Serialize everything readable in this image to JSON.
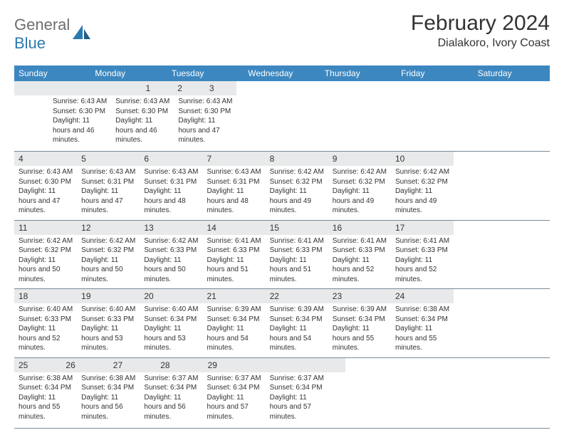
{
  "brand": {
    "part1": "General",
    "part2": "Blue"
  },
  "title": "February 2024",
  "location": "Dialakoro, Ivory Coast",
  "colors": {
    "header_bg": "#3c87c0",
    "header_text": "#ffffff",
    "num_bg": "#e8e9ea",
    "text": "#333333",
    "logo_gray": "#6e6e6e",
    "logo_blue": "#2a7ab0",
    "rule": "#7a8a99"
  },
  "dayNames": [
    "Sunday",
    "Monday",
    "Tuesday",
    "Wednesday",
    "Thursday",
    "Friday",
    "Saturday"
  ],
  "weeks": [
    [
      null,
      null,
      null,
      null,
      {
        "n": "1",
        "sunrise": "6:43 AM",
        "sunset": "6:30 PM",
        "daylight": "11 hours and 46 minutes."
      },
      {
        "n": "2",
        "sunrise": "6:43 AM",
        "sunset": "6:30 PM",
        "daylight": "11 hours and 46 minutes."
      },
      {
        "n": "3",
        "sunrise": "6:43 AM",
        "sunset": "6:30 PM",
        "daylight": "11 hours and 47 minutes."
      }
    ],
    [
      {
        "n": "4",
        "sunrise": "6:43 AM",
        "sunset": "6:30 PM",
        "daylight": "11 hours and 47 minutes."
      },
      {
        "n": "5",
        "sunrise": "6:43 AM",
        "sunset": "6:31 PM",
        "daylight": "11 hours and 47 minutes."
      },
      {
        "n": "6",
        "sunrise": "6:43 AM",
        "sunset": "6:31 PM",
        "daylight": "11 hours and 48 minutes."
      },
      {
        "n": "7",
        "sunrise": "6:43 AM",
        "sunset": "6:31 PM",
        "daylight": "11 hours and 48 minutes."
      },
      {
        "n": "8",
        "sunrise": "6:42 AM",
        "sunset": "6:32 PM",
        "daylight": "11 hours and 49 minutes."
      },
      {
        "n": "9",
        "sunrise": "6:42 AM",
        "sunset": "6:32 PM",
        "daylight": "11 hours and 49 minutes."
      },
      {
        "n": "10",
        "sunrise": "6:42 AM",
        "sunset": "6:32 PM",
        "daylight": "11 hours and 49 minutes."
      }
    ],
    [
      {
        "n": "11",
        "sunrise": "6:42 AM",
        "sunset": "6:32 PM",
        "daylight": "11 hours and 50 minutes."
      },
      {
        "n": "12",
        "sunrise": "6:42 AM",
        "sunset": "6:32 PM",
        "daylight": "11 hours and 50 minutes."
      },
      {
        "n": "13",
        "sunrise": "6:42 AM",
        "sunset": "6:33 PM",
        "daylight": "11 hours and 50 minutes."
      },
      {
        "n": "14",
        "sunrise": "6:41 AM",
        "sunset": "6:33 PM",
        "daylight": "11 hours and 51 minutes."
      },
      {
        "n": "15",
        "sunrise": "6:41 AM",
        "sunset": "6:33 PM",
        "daylight": "11 hours and 51 minutes."
      },
      {
        "n": "16",
        "sunrise": "6:41 AM",
        "sunset": "6:33 PM",
        "daylight": "11 hours and 52 minutes."
      },
      {
        "n": "17",
        "sunrise": "6:41 AM",
        "sunset": "6:33 PM",
        "daylight": "11 hours and 52 minutes."
      }
    ],
    [
      {
        "n": "18",
        "sunrise": "6:40 AM",
        "sunset": "6:33 PM",
        "daylight": "11 hours and 52 minutes."
      },
      {
        "n": "19",
        "sunrise": "6:40 AM",
        "sunset": "6:33 PM",
        "daylight": "11 hours and 53 minutes."
      },
      {
        "n": "20",
        "sunrise": "6:40 AM",
        "sunset": "6:34 PM",
        "daylight": "11 hours and 53 minutes."
      },
      {
        "n": "21",
        "sunrise": "6:39 AM",
        "sunset": "6:34 PM",
        "daylight": "11 hours and 54 minutes."
      },
      {
        "n": "22",
        "sunrise": "6:39 AM",
        "sunset": "6:34 PM",
        "daylight": "11 hours and 54 minutes."
      },
      {
        "n": "23",
        "sunrise": "6:39 AM",
        "sunset": "6:34 PM",
        "daylight": "11 hours and 55 minutes."
      },
      {
        "n": "24",
        "sunrise": "6:38 AM",
        "sunset": "6:34 PM",
        "daylight": "11 hours and 55 minutes."
      }
    ],
    [
      {
        "n": "25",
        "sunrise": "6:38 AM",
        "sunset": "6:34 PM",
        "daylight": "11 hours and 55 minutes."
      },
      {
        "n": "26",
        "sunrise": "6:38 AM",
        "sunset": "6:34 PM",
        "daylight": "11 hours and 56 minutes."
      },
      {
        "n": "27",
        "sunrise": "6:37 AM",
        "sunset": "6:34 PM",
        "daylight": "11 hours and 56 minutes."
      },
      {
        "n": "28",
        "sunrise": "6:37 AM",
        "sunset": "6:34 PM",
        "daylight": "11 hours and 57 minutes."
      },
      {
        "n": "29",
        "sunrise": "6:37 AM",
        "sunset": "6:34 PM",
        "daylight": "11 hours and 57 minutes."
      },
      null,
      null
    ]
  ],
  "labels": {
    "sunrise": "Sunrise:",
    "sunset": "Sunset:",
    "daylight": "Daylight:"
  }
}
